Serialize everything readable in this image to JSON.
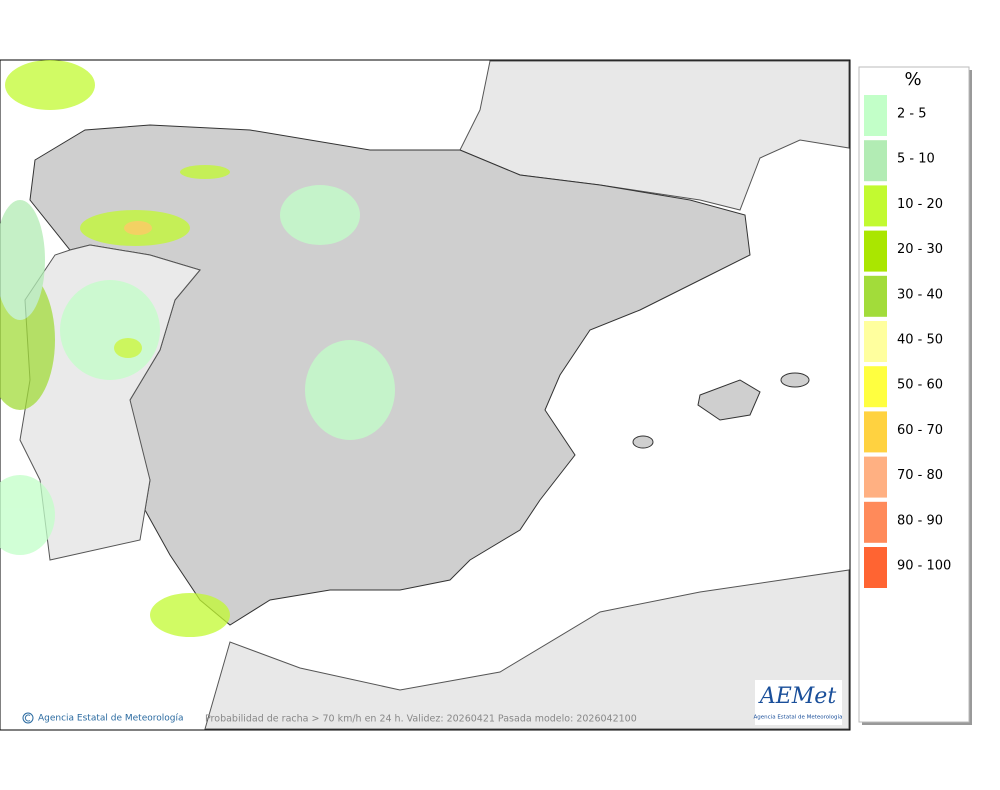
{
  "map": {
    "caption": "Probabilidad de racha > 70 km/h en 24 h. Validez: 20260421 Pasada modelo: 2026042100",
    "credit": "Agencia Estatal de Meteorología",
    "logo": {
      "name": "AEMet",
      "subtitle": "Agencia Estatal de Meteorología"
    }
  },
  "legend": {
    "title": "%",
    "items": [
      {
        "label": "2 - 5",
        "color": "#c2ffc8"
      },
      {
        "label": "5 - 10",
        "color": "#b2ecb4"
      },
      {
        "label": "10 - 20",
        "color": "#c2fa30"
      },
      {
        "label": "20 - 30",
        "color": "#aae600"
      },
      {
        "label": "30 - 40",
        "color": "#a2dc3a"
      },
      {
        "label": "40 - 50",
        "color": "#ffff9e"
      },
      {
        "label": "50 - 60",
        "color": "#ffff40"
      },
      {
        "label": "60 - 70",
        "color": "#ffd240"
      },
      {
        "label": "70 - 80",
        "color": "#ffb082"
      },
      {
        "label": "80 - 90",
        "color": "#ff8a5a"
      },
      {
        "label": "90 - 100",
        "color": "#ff6432"
      }
    ]
  }
}
